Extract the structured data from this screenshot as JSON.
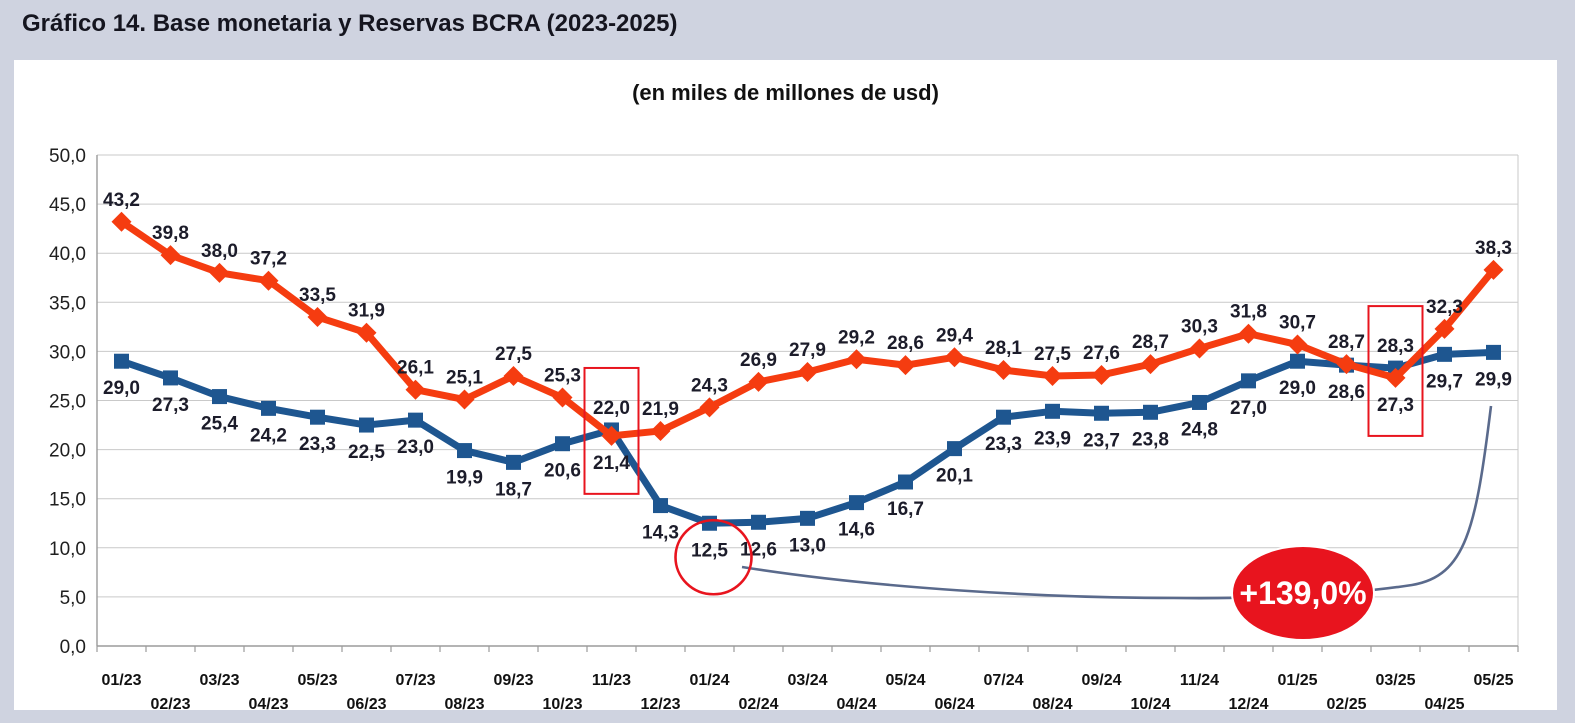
{
  "header": {
    "title": "Gráfico 14. Base monetaria y Reservas BCRA (2023-2025)"
  },
  "chart_data": {
    "type": "line",
    "title": "Gráfico 14. Base monetaria y Reservas BCRA (2023-2025)",
    "subtitle": "(en miles de millones de usd)",
    "categories": [
      "01/23",
      "02/23",
      "03/23",
      "04/23",
      "05/23",
      "06/23",
      "07/23",
      "08/23",
      "09/23",
      "10/23",
      "11/23",
      "12/23",
      "01/24",
      "02/24",
      "03/24",
      "04/24",
      "05/24",
      "06/24",
      "07/24",
      "08/24",
      "09/24",
      "10/24",
      "11/24",
      "12/24",
      "01/25",
      "02/25",
      "03/25",
      "04/25",
      "05/25"
    ],
    "series": [
      {
        "id": "blue",
        "color": "#1E5690",
        "marker": "square",
        "values": [
          29.0,
          27.3,
          25.4,
          24.2,
          23.3,
          22.5,
          23.0,
          19.9,
          18.7,
          20.6,
          22.0,
          14.3,
          12.5,
          12.6,
          13.0,
          14.6,
          16.7,
          20.1,
          23.3,
          23.9,
          23.7,
          23.8,
          24.8,
          27.0,
          29.0,
          28.6,
          28.3,
          29.7,
          29.9
        ],
        "label_side_default": "below",
        "label_side_exceptions": {
          "10": "above",
          "26": "above"
        }
      },
      {
        "id": "orange",
        "color": "#F53C10",
        "marker": "diamond",
        "values": [
          43.2,
          39.8,
          38.0,
          37.2,
          33.5,
          31.9,
          26.1,
          25.1,
          27.5,
          25.3,
          21.4,
          21.9,
          24.3,
          26.9,
          27.9,
          29.2,
          28.6,
          29.4,
          28.1,
          27.5,
          27.6,
          28.7,
          30.3,
          31.8,
          30.7,
          28.7,
          27.3,
          32.3,
          38.3
        ],
        "label_side_default": "above",
        "label_side_exceptions": {
          "10": "below",
          "26": "below"
        }
      }
    ],
    "ylim": [
      0,
      50
    ],
    "ytick_step": 5,
    "y_tick_labels": [
      "0,0",
      "5,0",
      "10,0",
      "15,0",
      "20,0",
      "25,0",
      "30,0",
      "35,0",
      "40,0",
      "45,0",
      "50,0"
    ],
    "decimal_separator": ",",
    "grid": true,
    "legend": "none",
    "annotations": {
      "accent_color": "#E8141E",
      "connector_color": "#5A6A8C",
      "boxed_categories": [
        "11/23",
        "03/25"
      ],
      "circled": {
        "category": "01/24",
        "series": "blue",
        "value": 12.5
      },
      "callout": {
        "text": "+139,0%",
        "from_category": "01/24",
        "to_category": "05/25"
      }
    }
  }
}
